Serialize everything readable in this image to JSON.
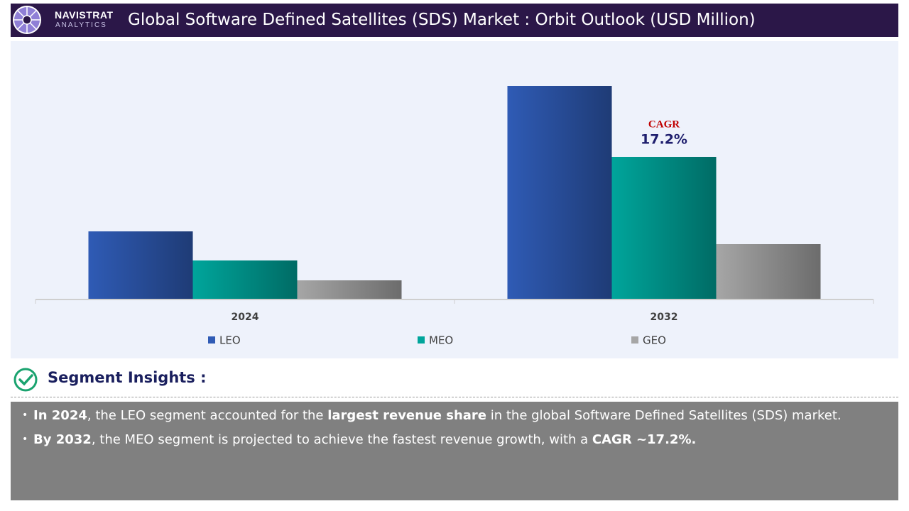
{
  "header": {
    "logo_name": "NAVISTRAT",
    "logo_sub": "ANALYTICS",
    "title": "Global Software Defined Satellites (SDS) Market : Orbit Outlook (USD Million)"
  },
  "chart_data": {
    "type": "bar",
    "categories": [
      "2024",
      "2032"
    ],
    "series": [
      {
        "name": "LEO",
        "color": "#2f5bb5",
        "values": [
          95,
          300
        ]
      },
      {
        "name": "MEO",
        "color": "#00a59b",
        "values": [
          54,
          200
        ]
      },
      {
        "name": "GEO",
        "color": "#a6a6a6",
        "values": [
          26,
          77
        ]
      }
    ],
    "ylim": [
      0,
      320
    ],
    "annotation": {
      "label": "CAGR",
      "value": "17.2%"
    },
    "legend": "bottom"
  },
  "insights": {
    "title": "Segment Insights :",
    "bullets": [
      [
        {
          "text": "In 2024",
          "bold": true
        },
        {
          "text": ", the LEO segment accounted for the ",
          "bold": false
        },
        {
          "text": "largest revenue share",
          "bold": true
        },
        {
          "text": " in the global Software Defined Satellites (SDS) market.",
          "bold": false
        }
      ],
      [
        {
          "text": "By 2032",
          "bold": true
        },
        {
          "text": ", the MEO segment is projected to achieve the fastest revenue growth, with a ",
          "bold": false
        },
        {
          "text": "CAGR ~17.2%.",
          "bold": true
        }
      ]
    ]
  }
}
